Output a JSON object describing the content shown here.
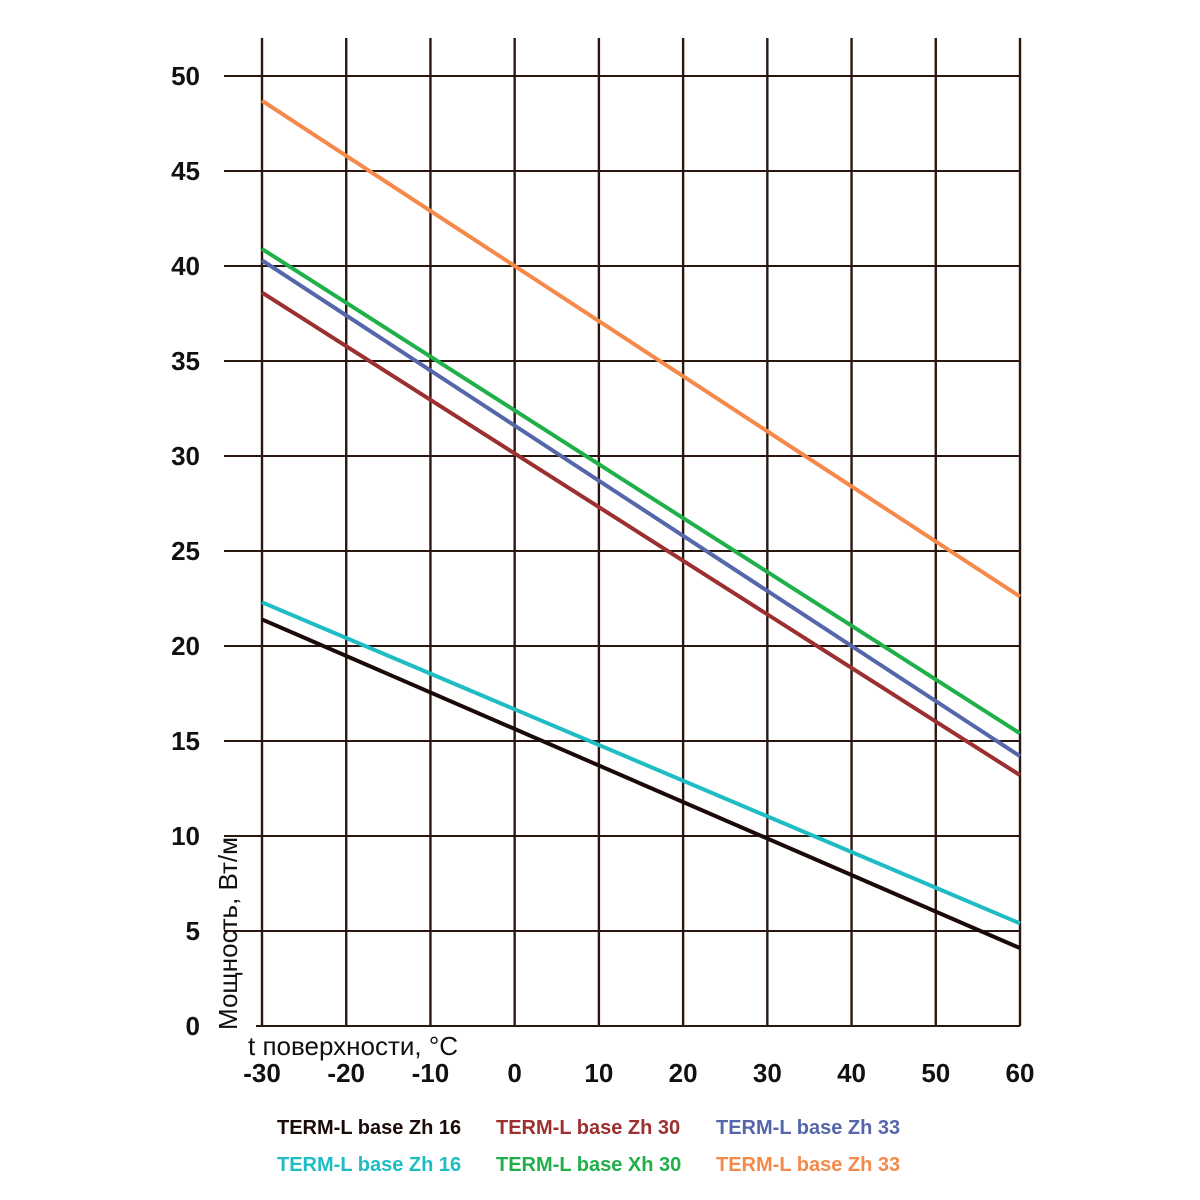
{
  "chart_data": {
    "type": "line",
    "xlabel": "t поверхности, °C",
    "ylabel": "Мощность, Вт/м",
    "xlim": [
      -30,
      60
    ],
    "ylim": [
      0,
      50
    ],
    "x_ticks": [
      -30,
      -20,
      -10,
      0,
      10,
      20,
      30,
      40,
      50,
      60
    ],
    "y_ticks": [
      0,
      5,
      10,
      15,
      20,
      25,
      30,
      35,
      40,
      45,
      50
    ],
    "grid": "vertical-and-horizontal",
    "legend_position": "bottom",
    "series": [
      {
        "name": "TERM-L base Zh 16",
        "color": "#1a0a08",
        "x": [
          -30,
          60
        ],
        "y": [
          21.4,
          4.1
        ]
      },
      {
        "name": "TERM-L base Zh 30",
        "color": "#9c2f2f",
        "x": [
          -30,
          60
        ],
        "y": [
          38.6,
          13.2
        ]
      },
      {
        "name": "TERM-L base Zh 33",
        "color": "#5566aa",
        "x": [
          -30,
          60
        ],
        "y": [
          40.3,
          14.2
        ]
      },
      {
        "name": "TERM-L base Zh 16",
        "color": "#1fbcc4",
        "x": [
          -30,
          60
        ],
        "y": [
          22.3,
          5.4
        ]
      },
      {
        "name": "TERM-L base Xh 30",
        "color": "#1fb04a",
        "x": [
          -30,
          60
        ],
        "y": [
          40.9,
          15.4
        ]
      },
      {
        "name": "TERM-L base Zh 33",
        "color": "#f5894a",
        "x": [
          -30,
          60
        ],
        "y": [
          48.7,
          22.6
        ]
      }
    ]
  },
  "colors": {
    "grid": "#2a1810",
    "text": "#111111"
  }
}
